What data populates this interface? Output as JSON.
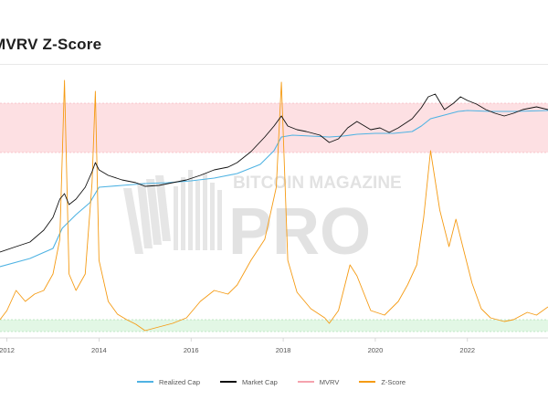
{
  "title": "MVRV Z-Score",
  "watermark": {
    "top": "BITCOIN MAGAZINE",
    "bottom": "PRO"
  },
  "legend": [
    {
      "label": "Realized Cap",
      "color": "#4fb3e3"
    },
    {
      "label": "Market Cap",
      "color": "#111111"
    },
    {
      "label": "MVRV",
      "color": "#f5a3ae"
    },
    {
      "label": "Z-Score",
      "color": "#f59b14"
    }
  ],
  "colors": {
    "top_band_fill": "#fde0e3",
    "bottom_band_fill": "#e2f7e5",
    "realized_cap": "#4fb3e3",
    "market_cap": "#111111",
    "z_score": "#f59b14"
  },
  "chart_data": {
    "type": "line",
    "title": "MVRV Z-Score",
    "x_range": [
      2011.85,
      2023.75
    ],
    "x_ticks": [
      2012,
      2014,
      2016,
      2018,
      2020,
      2022
    ],
    "x_tick_labels": [
      "2012",
      "2014",
      "2016",
      "2018",
      "2020",
      "2022"
    ],
    "grid": false,
    "legend_position": "bottom",
    "bands": [
      {
        "name": "overvalued zone",
        "color": "#fde0e3"
      },
      {
        "name": "undervalued zone",
        "color": "#e2f7e5"
      }
    ],
    "series": [
      {
        "name": "Market Cap",
        "color": "#111111",
        "points": [
          [
            2011.85,
            276
          ],
          [
            2012.2,
            270
          ],
          [
            2012.5,
            265
          ],
          [
            2012.8,
            252
          ],
          [
            2013.0,
            238
          ],
          [
            2013.15,
            218
          ],
          [
            2013.25,
            212
          ],
          [
            2013.35,
            224
          ],
          [
            2013.5,
            218
          ],
          [
            2013.7,
            205
          ],
          [
            2013.85,
            188
          ],
          [
            2013.92,
            178
          ],
          [
            2014.0,
            186
          ],
          [
            2014.2,
            192
          ],
          [
            2014.5,
            197
          ],
          [
            2014.8,
            200
          ],
          [
            2015.0,
            204
          ],
          [
            2015.3,
            203
          ],
          [
            2015.6,
            200
          ],
          [
            2015.9,
            197
          ],
          [
            2016.2,
            192
          ],
          [
            2016.5,
            186
          ],
          [
            2016.8,
            183
          ],
          [
            2017.0,
            178
          ],
          [
            2017.3,
            166
          ],
          [
            2017.6,
            150
          ],
          [
            2017.8,
            138
          ],
          [
            2017.96,
            127
          ],
          [
            2018.1,
            138
          ],
          [
            2018.3,
            142
          ],
          [
            2018.5,
            144
          ],
          [
            2018.8,
            148
          ],
          [
            2019.0,
            156
          ],
          [
            2019.2,
            152
          ],
          [
            2019.4,
            140
          ],
          [
            2019.6,
            133
          ],
          [
            2019.9,
            142
          ],
          [
            2020.1,
            140
          ],
          [
            2020.3,
            145
          ],
          [
            2020.5,
            140
          ],
          [
            2020.8,
            130
          ],
          [
            2021.0,
            118
          ],
          [
            2021.15,
            106
          ],
          [
            2021.3,
            103
          ],
          [
            2021.5,
            120
          ],
          [
            2021.7,
            113
          ],
          [
            2021.85,
            106
          ],
          [
            2022.0,
            110
          ],
          [
            2022.2,
            114
          ],
          [
            2022.4,
            120
          ],
          [
            2022.6,
            124
          ],
          [
            2022.8,
            127
          ],
          [
            2023.0,
            124
          ],
          [
            2023.2,
            120
          ],
          [
            2023.5,
            117
          ],
          [
            2023.75,
            120
          ]
        ]
      },
      {
        "name": "Realized Cap",
        "color": "#4fb3e3",
        "points": [
          [
            2011.85,
            292
          ],
          [
            2012.5,
            283
          ],
          [
            2013.0,
            272
          ],
          [
            2013.2,
            250
          ],
          [
            2013.5,
            235
          ],
          [
            2013.8,
            222
          ],
          [
            2014.0,
            205
          ],
          [
            2014.5,
            203
          ],
          [
            2015.0,
            201
          ],
          [
            2015.5,
            200
          ],
          [
            2016.0,
            198
          ],
          [
            2016.5,
            195
          ],
          [
            2017.0,
            190
          ],
          [
            2017.5,
            180
          ],
          [
            2017.8,
            165
          ],
          [
            2017.96,
            150
          ],
          [
            2018.2,
            148
          ],
          [
            2018.6,
            149
          ],
          [
            2019.0,
            150
          ],
          [
            2019.3,
            149
          ],
          [
            2019.6,
            147
          ],
          [
            2020.0,
            146
          ],
          [
            2020.4,
            146
          ],
          [
            2020.8,
            144
          ],
          [
            2021.0,
            138
          ],
          [
            2021.2,
            130
          ],
          [
            2021.5,
            126
          ],
          [
            2021.8,
            122
          ],
          [
            2022.0,
            121
          ],
          [
            2022.5,
            122
          ],
          [
            2023.0,
            122
          ],
          [
            2023.75,
            121
          ]
        ]
      },
      {
        "name": "Z-Score",
        "color": "#f59b14",
        "points": [
          [
            2011.85,
            350
          ],
          [
            2012.0,
            340
          ],
          [
            2012.2,
            318
          ],
          [
            2012.4,
            330
          ],
          [
            2012.6,
            322
          ],
          [
            2012.8,
            318
          ],
          [
            2013.0,
            300
          ],
          [
            2013.15,
            262
          ],
          [
            2013.25,
            88
          ],
          [
            2013.35,
            300
          ],
          [
            2013.5,
            318
          ],
          [
            2013.7,
            300
          ],
          [
            2013.85,
            200
          ],
          [
            2013.92,
            100
          ],
          [
            2014.0,
            285
          ],
          [
            2014.2,
            330
          ],
          [
            2014.4,
            344
          ],
          [
            2014.6,
            350
          ],
          [
            2014.8,
            355
          ],
          [
            2015.0,
            362
          ],
          [
            2015.3,
            358
          ],
          [
            2015.6,
            354
          ],
          [
            2015.9,
            348
          ],
          [
            2016.2,
            330
          ],
          [
            2016.5,
            318
          ],
          [
            2016.8,
            322
          ],
          [
            2017.0,
            312
          ],
          [
            2017.3,
            285
          ],
          [
            2017.6,
            262
          ],
          [
            2017.85,
            205
          ],
          [
            2017.96,
            90
          ],
          [
            2018.1,
            285
          ],
          [
            2018.3,
            320
          ],
          [
            2018.6,
            338
          ],
          [
            2018.9,
            348
          ],
          [
            2019.0,
            354
          ],
          [
            2019.2,
            340
          ],
          [
            2019.45,
            290
          ],
          [
            2019.6,
            302
          ],
          [
            2019.9,
            340
          ],
          [
            2020.2,
            345
          ],
          [
            2020.5,
            330
          ],
          [
            2020.7,
            312
          ],
          [
            2020.9,
            290
          ],
          [
            2021.05,
            238
          ],
          [
            2021.2,
            165
          ],
          [
            2021.4,
            230
          ],
          [
            2021.6,
            270
          ],
          [
            2021.75,
            240
          ],
          [
            2021.9,
            270
          ],
          [
            2022.1,
            310
          ],
          [
            2022.3,
            338
          ],
          [
            2022.5,
            348
          ],
          [
            2022.8,
            352
          ],
          [
            2023.0,
            350
          ],
          [
            2023.3,
            342
          ],
          [
            2023.5,
            345
          ],
          [
            2023.75,
            336
          ]
        ]
      }
    ]
  }
}
